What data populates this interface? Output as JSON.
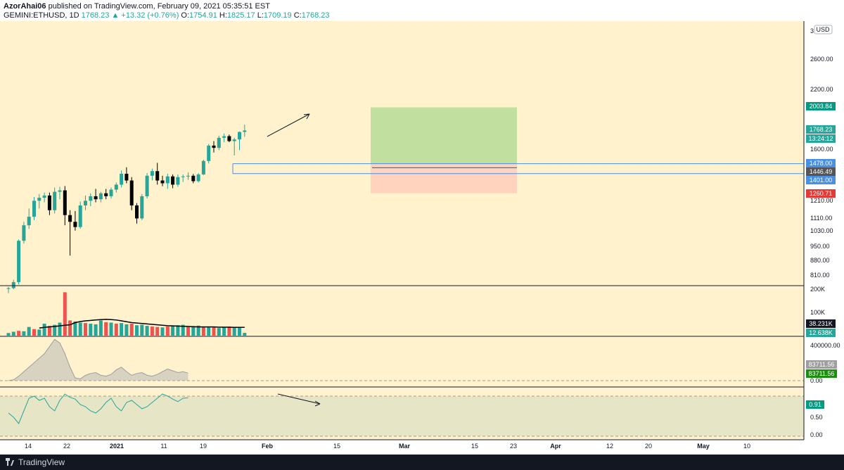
{
  "header": {
    "author": "AzorAhai06",
    "published_text": "published on TradingView.com, February 09, 2021 05:35:51 EST",
    "symbol": "GEMINI:ETHUSD, 1D",
    "last_price": "1768.23",
    "change": "▲ +13.32 (+0.76%)",
    "open_label": "O:",
    "open": "1754.91",
    "high_label": "H:",
    "high": "1825.17",
    "low_label": "L:",
    "low": "1709.19",
    "close_label": "C:",
    "close": "1768.23"
  },
  "currency_label": "USD",
  "colors": {
    "background": "#fff2cc",
    "bull": "#26a69a",
    "bear": "#000000",
    "volume_bull": "#26a69a",
    "volume_bear": "#ef5350",
    "target_zone": "#c1df9f",
    "stop_zone": "#ffd3bd",
    "entry_line": "#4a90e2",
    "sma_line": "#000000"
  },
  "price_axis": {
    "ticks": [
      "3C",
      "2600.00",
      "2200.00",
      "1600.00",
      "1210.00",
      "1110.00",
      "1030.00",
      "950.00",
      "880.00",
      "810.00"
    ],
    "badges": [
      {
        "text": "2003.84",
        "color": "#089981"
      },
      {
        "text": "1768.23",
        "color": "#26a69a"
      },
      {
        "text": "13:24:12",
        "color": "#26a69a"
      },
      {
        "text": "1478.00",
        "color": "#4a90e2"
      },
      {
        "text": "1446.49",
        "color": "#555555"
      },
      {
        "text": "1401.00",
        "color": "#4a90e2"
      },
      {
        "text": "1260.71",
        "color": "#e53935"
      }
    ]
  },
  "volume_axis": {
    "ticks": [
      "200K",
      "100K"
    ],
    "badges": [
      {
        "text": "38.231K",
        "color": "#131722"
      },
      {
        "text": "12.638K",
        "color": "#26a69a"
      }
    ]
  },
  "obv_axis": {
    "ticks": [
      "400000.00",
      "0.00"
    ],
    "badges": [
      {
        "text": "83711.56",
        "color": "#9e9e9e"
      },
      {
        "text": "83711.56",
        "color": "#1b8e0f"
      }
    ]
  },
  "osc_axis": {
    "ticks": [
      "0.50",
      "0.00"
    ],
    "badges": [
      {
        "text": "0.91",
        "color": "#089981"
      }
    ]
  },
  "time_axis": {
    "labels": [
      "14",
      "22",
      "2021",
      "11",
      "19",
      "Feb",
      "15",
      "Mar",
      "15",
      "23",
      "Apr",
      "12",
      "20",
      "May",
      "10"
    ]
  },
  "chart_data": {
    "type": "candlestick",
    "symbol": "GEMINI:ETHUSD",
    "interval": "1D",
    "candles": [
      {
        "o": 752,
        "h": 760,
        "l": 735,
        "c": 755
      },
      {
        "o": 755,
        "h": 790,
        "l": 750,
        "c": 780
      },
      {
        "o": 780,
        "h": 982,
        "l": 770,
        "c": 975
      },
      {
        "o": 975,
        "h": 1080,
        "l": 960,
        "c": 1060
      },
      {
        "o": 1060,
        "h": 1160,
        "l": 1040,
        "c": 1110
      },
      {
        "o": 1110,
        "h": 1235,
        "l": 1090,
        "c": 1210
      },
      {
        "o": 1210,
        "h": 1255,
        "l": 1160,
        "c": 1230
      },
      {
        "o": 1230,
        "h": 1265,
        "l": 1200,
        "c": 1245
      },
      {
        "o": 1245,
        "h": 1265,
        "l": 1120,
        "c": 1150
      },
      {
        "o": 1150,
        "h": 1300,
        "l": 1130,
        "c": 1270
      },
      {
        "o": 1270,
        "h": 1305,
        "l": 1220,
        "c": 1280
      },
      {
        "o": 1280,
        "h": 1310,
        "l": 1060,
        "c": 1120
      },
      {
        "o": 1120,
        "h": 1150,
        "l": 900,
        "c": 1080
      },
      {
        "o": 1080,
        "h": 1145,
        "l": 1030,
        "c": 1050
      },
      {
        "o": 1050,
        "h": 1205,
        "l": 1040,
        "c": 1180
      },
      {
        "o": 1180,
        "h": 1245,
        "l": 1150,
        "c": 1210
      },
      {
        "o": 1210,
        "h": 1260,
        "l": 1175,
        "c": 1240
      },
      {
        "o": 1240,
        "h": 1290,
        "l": 1200,
        "c": 1220
      },
      {
        "o": 1220,
        "h": 1270,
        "l": 1200,
        "c": 1260
      },
      {
        "o": 1260,
        "h": 1290,
        "l": 1220,
        "c": 1240
      },
      {
        "o": 1240,
        "h": 1300,
        "l": 1225,
        "c": 1285
      },
      {
        "o": 1285,
        "h": 1335,
        "l": 1265,
        "c": 1320
      },
      {
        "o": 1320,
        "h": 1425,
        "l": 1300,
        "c": 1400
      },
      {
        "o": 1400,
        "h": 1450,
        "l": 1330,
        "c": 1350
      },
      {
        "o": 1350,
        "h": 1375,
        "l": 1150,
        "c": 1180
      },
      {
        "o": 1180,
        "h": 1195,
        "l": 1070,
        "c": 1100
      },
      {
        "o": 1100,
        "h": 1255,
        "l": 1090,
        "c": 1240
      },
      {
        "o": 1240,
        "h": 1405,
        "l": 1225,
        "c": 1385
      },
      {
        "o": 1385,
        "h": 1440,
        "l": 1350,
        "c": 1420
      },
      {
        "o": 1420,
        "h": 1485,
        "l": 1320,
        "c": 1350
      },
      {
        "o": 1350,
        "h": 1385,
        "l": 1310,
        "c": 1330
      },
      {
        "o": 1330,
        "h": 1400,
        "l": 1290,
        "c": 1380
      },
      {
        "o": 1380,
        "h": 1395,
        "l": 1295,
        "c": 1320
      },
      {
        "o": 1320,
        "h": 1395,
        "l": 1305,
        "c": 1375
      },
      {
        "o": 1375,
        "h": 1395,
        "l": 1340,
        "c": 1380
      },
      {
        "o": 1380,
        "h": 1410,
        "l": 1355,
        "c": 1385
      },
      {
        "o": 1385,
        "h": 1398,
        "l": 1330,
        "c": 1345
      },
      {
        "o": 1345,
        "h": 1405,
        "l": 1335,
        "c": 1395
      },
      {
        "o": 1395,
        "h": 1510,
        "l": 1390,
        "c": 1500
      },
      {
        "o": 1500,
        "h": 1645,
        "l": 1480,
        "c": 1630
      },
      {
        "o": 1630,
        "h": 1670,
        "l": 1570,
        "c": 1610
      },
      {
        "o": 1610,
        "h": 1720,
        "l": 1590,
        "c": 1700
      },
      {
        "o": 1700,
        "h": 1740,
        "l": 1660,
        "c": 1715
      },
      {
        "o": 1715,
        "h": 1730,
        "l": 1660,
        "c": 1670
      },
      {
        "o": 1670,
        "h": 1700,
        "l": 1545,
        "c": 1685
      },
      {
        "o": 1685,
        "h": 1760,
        "l": 1590,
        "c": 1754
      },
      {
        "o": 1754.91,
        "h": 1825.17,
        "l": 1709.19,
        "c": 1768.23
      }
    ],
    "volume": [
      12,
      18,
      22,
      20,
      40,
      30,
      28,
      55,
      45,
      50,
      60,
      200,
      70,
      65,
      60,
      58,
      55,
      52,
      70,
      62,
      60,
      55,
      58,
      52,
      55,
      48,
      50,
      45,
      42,
      40,
      38,
      42,
      45,
      48,
      50,
      40,
      44,
      46,
      42,
      40,
      38,
      35,
      40,
      42,
      38,
      36,
      12.638
    ],
    "volume_colors": [
      "u",
      "u",
      "d",
      "u",
      "u",
      "d",
      "u",
      "u",
      "d",
      "u",
      "u",
      "d",
      "d",
      "u",
      "u",
      "d",
      "u",
      "u",
      "u",
      "d",
      "u",
      "d",
      "u",
      "u",
      "d",
      "u",
      "u",
      "u",
      "d",
      "d",
      "u",
      "d",
      "u",
      "u",
      "u",
      "d",
      "u",
      "u",
      "d",
      "u",
      "d",
      "u",
      "u",
      "d",
      "u",
      "u",
      "u"
    ],
    "volume_sma": [
      35,
      38,
      40,
      42,
      45,
      48,
      50,
      60,
      65,
      68,
      70,
      72,
      74,
      75,
      74,
      72,
      68,
      64,
      60,
      58,
      56,
      54,
      52,
      50,
      48,
      46,
      45,
      44,
      43,
      42,
      41,
      40,
      40,
      40,
      40,
      39,
      39,
      38.5,
      38.3,
      38.2,
      38.231
    ],
    "obv": [
      0,
      10000,
      50000,
      100000,
      150000,
      200000,
      250000,
      300000,
      380000,
      460000,
      420000,
      300000,
      150000,
      30000,
      20000,
      60000,
      80000,
      90000,
      60000,
      50000,
      70000,
      120000,
      150000,
      100000,
      60000,
      80000,
      90000,
      60000,
      50000,
      70000,
      100000,
      130000,
      110000,
      90000,
      100000,
      83711.56
    ],
    "oscillator": [
      0.55,
      0.45,
      0.3,
      0.6,
      0.9,
      0.95,
      0.85,
      0.9,
      0.7,
      0.6,
      0.85,
      1.0,
      0.92,
      0.88,
      0.75,
      0.7,
      0.6,
      0.55,
      0.65,
      0.8,
      0.9,
      0.7,
      0.6,
      0.8,
      0.85,
      0.75,
      0.65,
      0.7,
      0.8,
      0.9,
      1.0,
      0.95,
      0.88,
      0.82,
      0.9,
      0.91
    ],
    "oscillator_range": [
      0,
      1.1
    ],
    "oscillator_bands": [
      0.5,
      0.95
    ],
    "position": {
      "entry": 1478.0,
      "target": 2003.84,
      "stop": 1260.71,
      "level_low": 1401.0
    },
    "ylim": [
      750,
      3000
    ],
    "yscale": "log"
  }
}
